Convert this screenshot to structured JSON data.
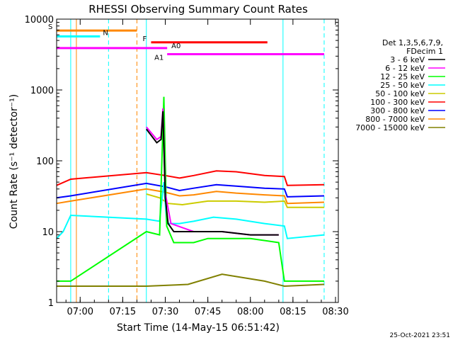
{
  "chart_data": {
    "type": "line",
    "title": "RHESSI Observing Summary Count Rates",
    "xlabel": "Start Time (14-May-15 06:51:42)",
    "ylabel": "Count Rate (s⁻¹ detector⁻¹)",
    "y_scale": "log",
    "ylim": [
      1,
      10000
    ],
    "xlim": [
      "06:51:42",
      "08:31:00"
    ],
    "x_ticks": [
      "07:00",
      "07:15",
      "07:30",
      "07:45",
      "08:00",
      "08:15",
      "08:30"
    ],
    "y_ticks": [
      "1",
      "10",
      "100",
      "1000",
      "10000"
    ],
    "grid": false,
    "legend_placement": "right",
    "legend_header": [
      "Det 1,3,5,6,7,9,",
      "FDecim 1"
    ],
    "timestamp": "25-Oct-2021 23:51",
    "series": [
      {
        "name": "3 - 6 keV",
        "color": "#000000",
        "points": [
          [
            "07:23:20",
            280
          ],
          [
            "07:27:00",
            180
          ],
          [
            "07:28:30",
            200
          ],
          [
            "07:29:10",
            500
          ],
          [
            "07:30:00",
            30
          ],
          [
            "07:31:00",
            13
          ],
          [
            "07:33:00",
            10
          ],
          [
            "07:40:00",
            10
          ],
          [
            "07:50:00",
            10
          ],
          [
            "08:00:00",
            9
          ],
          [
            "08:10:00",
            9
          ]
        ]
      },
      {
        "name": "6 - 12 keV",
        "color": "#ff00ff",
        "points": [
          [
            "07:23:20",
            300
          ],
          [
            "07:27:00",
            200
          ],
          [
            "07:28:30",
            220
          ],
          [
            "07:29:10",
            550
          ],
          [
            "07:30:00",
            35
          ],
          [
            "07:32:00",
            13
          ],
          [
            "07:40:00",
            10
          ],
          [
            "07:50:00",
            10
          ],
          [
            "08:00:00",
            9
          ],
          [
            "08:10:00",
            9
          ]
        ]
      },
      {
        "name": "12 - 25 keV",
        "color": "#00ff00",
        "points": [
          [
            "06:51:42",
            2
          ],
          [
            "06:56:40",
            2
          ],
          [
            "07:23:20",
            10
          ],
          [
            "07:28:00",
            9
          ],
          [
            "07:29:30",
            800
          ],
          [
            "07:30:30",
            12
          ],
          [
            "07:33:00",
            7
          ],
          [
            "07:40:00",
            7
          ],
          [
            "07:45:00",
            8
          ],
          [
            "07:50:00",
            8
          ],
          [
            "08:00:00",
            8
          ],
          [
            "08:10:00",
            7
          ],
          [
            "08:12:00",
            2
          ],
          [
            "08:26:00",
            2
          ]
        ]
      },
      {
        "name": "25 - 50 keV",
        "color": "#00ffff",
        "points": [
          [
            "06:51:42",
            8
          ],
          [
            "06:54:00",
            10
          ],
          [
            "06:56:40",
            17
          ],
          [
            "07:23:20",
            15
          ],
          [
            "07:28:00",
            14
          ],
          [
            "07:29:30",
            50
          ],
          [
            "07:30:30",
            13
          ],
          [
            "07:35:00",
            13
          ],
          [
            "07:40:00",
            14
          ],
          [
            "07:47:00",
            16
          ],
          [
            "07:55:00",
            15
          ],
          [
            "08:05:00",
            13
          ],
          [
            "08:12:00",
            12
          ],
          [
            "08:13:00",
            8
          ],
          [
            "08:26:00",
            9
          ]
        ]
      },
      {
        "name": "50 - 100 keV",
        "color": "#cccc00",
        "points": [
          [
            "07:23:20",
            34
          ],
          [
            "07:28:00",
            30
          ],
          [
            "07:31:00",
            25
          ],
          [
            "07:36:00",
            24
          ],
          [
            "07:45:00",
            27
          ],
          [
            "07:55:00",
            27
          ],
          [
            "08:05:00",
            26
          ],
          [
            "08:12:00",
            27
          ],
          [
            "08:13:00",
            22
          ],
          [
            "08:26:00",
            22
          ]
        ]
      },
      {
        "name": "100 - 300 keV",
        "color": "#ff0000",
        "points": [
          [
            "06:51:42",
            45
          ],
          [
            "06:56:40",
            55
          ],
          [
            "07:23:20",
            68
          ],
          [
            "07:30:00",
            62
          ],
          [
            "07:35:00",
            57
          ],
          [
            "07:40:00",
            62
          ],
          [
            "07:48:00",
            72
          ],
          [
            "07:55:00",
            70
          ],
          [
            "08:05:00",
            62
          ],
          [
            "08:12:00",
            60
          ],
          [
            "08:13:00",
            45
          ],
          [
            "08:26:00",
            46
          ]
        ]
      },
      {
        "name": "300 - 800 keV",
        "color": "#0000ff",
        "points": [
          [
            "06:51:42",
            30
          ],
          [
            "06:56:40",
            32
          ],
          [
            "07:23:20",
            48
          ],
          [
            "07:30:00",
            43
          ],
          [
            "07:35:00",
            38
          ],
          [
            "07:40:00",
            41
          ],
          [
            "07:48:00",
            46
          ],
          [
            "07:55:00",
            44
          ],
          [
            "08:05:00",
            41
          ],
          [
            "08:12:00",
            40
          ],
          [
            "08:13:00",
            31
          ],
          [
            "08:26:00",
            32
          ]
        ]
      },
      {
        "name": "800 - 7000 keV",
        "color": "#ff8800",
        "points": [
          [
            "06:51:42",
            25
          ],
          [
            "06:56:40",
            27
          ],
          [
            "07:23:20",
            40
          ],
          [
            "07:30:00",
            36
          ],
          [
            "07:35:00",
            32
          ],
          [
            "07:40:00",
            33
          ],
          [
            "07:48:00",
            37
          ],
          [
            "07:55:00",
            35
          ],
          [
            "08:05:00",
            33
          ],
          [
            "08:12:00",
            32
          ],
          [
            "08:13:00",
            25
          ],
          [
            "08:26:00",
            26
          ]
        ]
      },
      {
        "name": "7000 - 15000 keV",
        "color": "#808000",
        "points": [
          [
            "06:51:42",
            1.7
          ],
          [
            "06:56:40",
            1.7
          ],
          [
            "07:23:20",
            1.7
          ],
          [
            "07:38:00",
            1.8
          ],
          [
            "07:50:00",
            2.5
          ],
          [
            "08:05:00",
            2.0
          ],
          [
            "08:12:00",
            1.7
          ],
          [
            "08:26:00",
            1.8
          ]
        ]
      }
    ],
    "annotations": [
      {
        "label": "S",
        "color": "#ff8800",
        "x_start": "06:51:42",
        "x_end": "07:20:00",
        "y": 6900
      },
      {
        "label": "N",
        "color": "#00ffff",
        "x_start": "06:51:42",
        "x_end": "07:07:00",
        "y": 5700
      },
      {
        "label": "F",
        "color": "#ff0000",
        "x_start": "07:25:00",
        "x_end": "08:06:00",
        "y": 4700
      },
      {
        "label": "A0",
        "color": "#ff00ff",
        "x_start": "06:51:42",
        "x_end": "07:30:40",
        "y": 3900
      },
      {
        "label": "A1",
        "color": "#ff00ff",
        "x_start": "07:30:40",
        "x_end": "08:26:00",
        "y": 3200
      }
    ],
    "vertical_markers": [
      {
        "time": "06:56:40",
        "color": "#00ffff",
        "style": "solid"
      },
      {
        "time": "06:58:40",
        "color": "#ff8800",
        "style": "solid"
      },
      {
        "time": "07:10:00",
        "color": "#00ffff",
        "style": "dashed"
      },
      {
        "time": "07:20:00",
        "color": "#ff8800",
        "style": "dashed"
      },
      {
        "time": "07:23:20",
        "color": "#00ffff",
        "style": "solid"
      },
      {
        "time": "08:11:30",
        "color": "#00ffff",
        "style": "solid"
      },
      {
        "time": "08:26:00",
        "color": "#00ffff",
        "style": "dashed"
      }
    ]
  }
}
